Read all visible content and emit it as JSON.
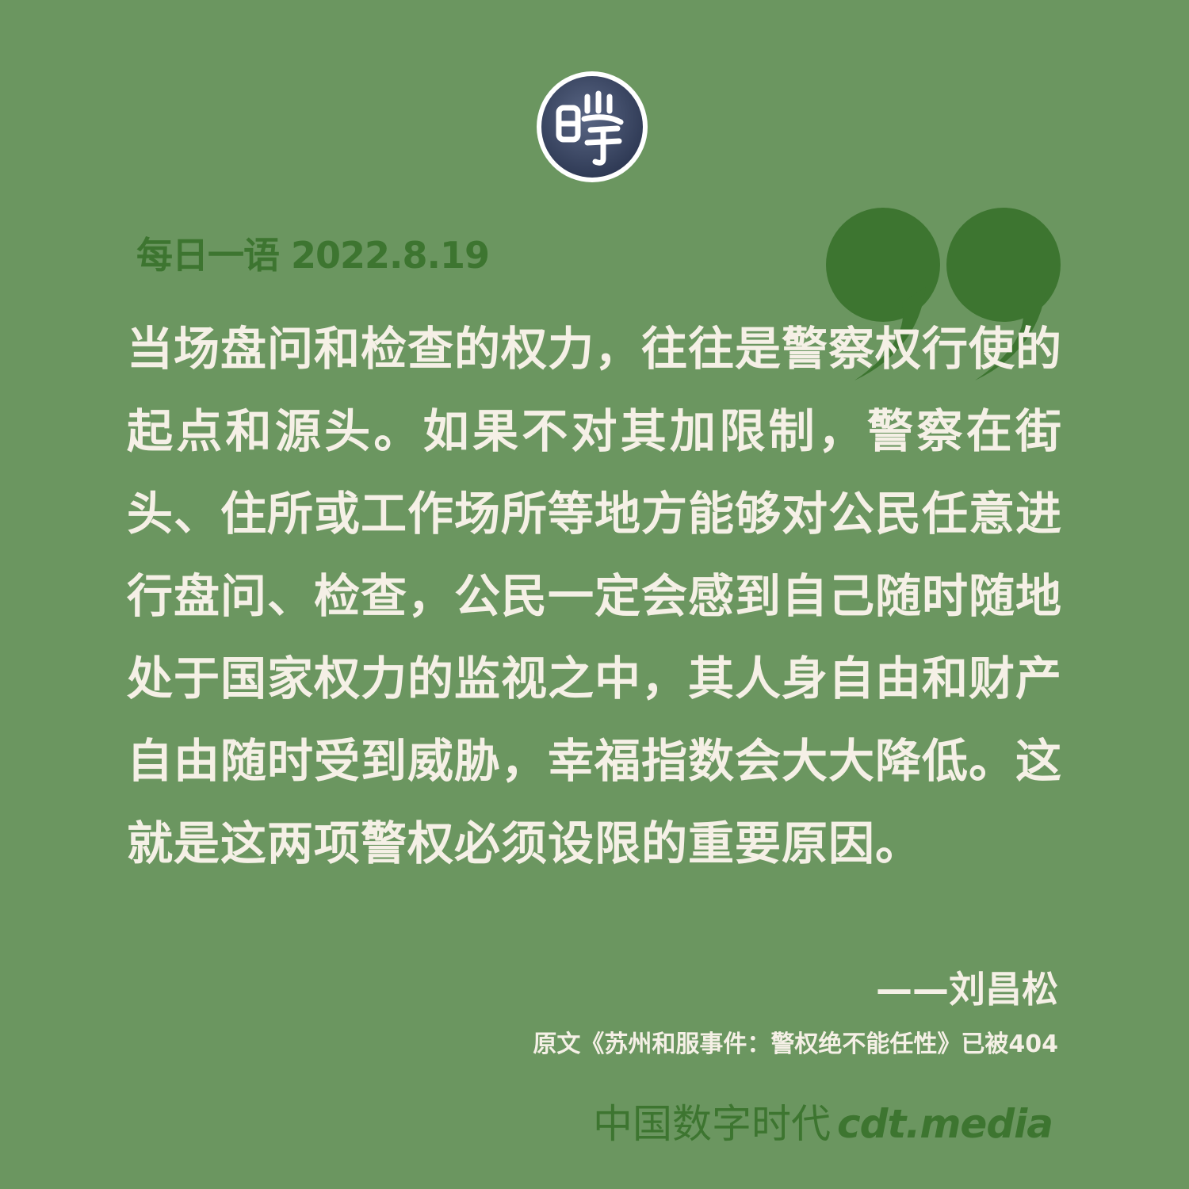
{
  "logo": {
    "glyph": "晓",
    "icon": "cdt-seal-logo-icon"
  },
  "quote_icon": "closing-quote-icon",
  "header": {
    "date_line": "每日一语 2022.8.19"
  },
  "quote": {
    "text": "当场盘问和检查的权力，往往是警察权行使的起点和源头。如果不对其加限制，警察在街头、住所或工作场所等地方能够对公民任意进行盘问、检查，公民一定会感到自己随时随地处于国家权力的监视之中，其人身自由和财产自由随时受到威胁，幸福指数会大大降低。这就是这两项警权必须设限的重要原因。"
  },
  "attribution": {
    "author": "——刘昌松"
  },
  "note": "原文《苏州和服事件：警权绝不能任性》已被404",
  "brand": {
    "cn": "中国数字时代",
    "en": "cdt.media"
  },
  "colors": {
    "background": "#6b9660",
    "accent": "#3d7530",
    "text": "#f5f0e6",
    "logo_bg": "#3e4a66"
  }
}
